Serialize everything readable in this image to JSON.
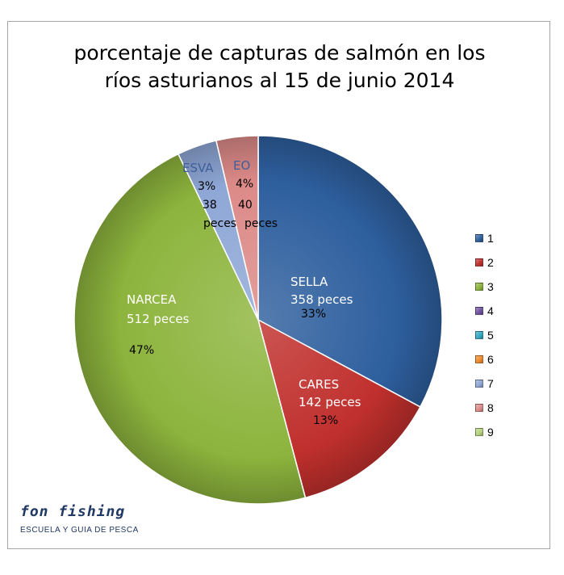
{
  "chart_data": {
    "type": "pie",
    "title_lines": [
      "porcentaje de capturas de salmón en los",
      "ríos asturianos al 15 de junio 2014"
    ],
    "slices": [
      {
        "id": "1",
        "name": "SELLA",
        "count_label": "358 peces",
        "percent_label": "33%",
        "value": 358,
        "color": "#2e5f9e"
      },
      {
        "id": "2",
        "name": "CARES",
        "count_label": "142 peces",
        "percent_label": "13%",
        "value": 142,
        "color": "#c0302d"
      },
      {
        "id": "3",
        "name": "NARCEA",
        "count_label": "512 peces",
        "percent_label": "47%",
        "value": 512,
        "color": "#8db43d"
      },
      {
        "id": "7",
        "name": "ESVA",
        "count_label": "38",
        "count_unit": "peces",
        "percent_label": "3%",
        "value": 38,
        "color": "#8ea7d6"
      },
      {
        "id": "8",
        "name": "EO",
        "count_label": "40",
        "count_unit": "peces",
        "percent_label": "4%",
        "value": 40,
        "color": "#dc8a88"
      }
    ],
    "legend": {
      "position": "right",
      "entries": [
        {
          "label": "1",
          "color": "#2e5f9e"
        },
        {
          "label": "2",
          "color": "#c0302d"
        },
        {
          "label": "3",
          "color": "#8db43d"
        },
        {
          "label": "4",
          "color": "#7052a0"
        },
        {
          "label": "5",
          "color": "#33a8c4"
        },
        {
          "label": "6",
          "color": "#ef8a2c"
        },
        {
          "label": "7",
          "color": "#8ea7d6"
        },
        {
          "label": "8",
          "color": "#dc8a88"
        },
        {
          "label": "9",
          "color": "#b6d27d"
        }
      ]
    }
  },
  "brand": {
    "name": "fon fishing",
    "subtitle": "ESCUELA Y GUIA DE PESCA"
  }
}
